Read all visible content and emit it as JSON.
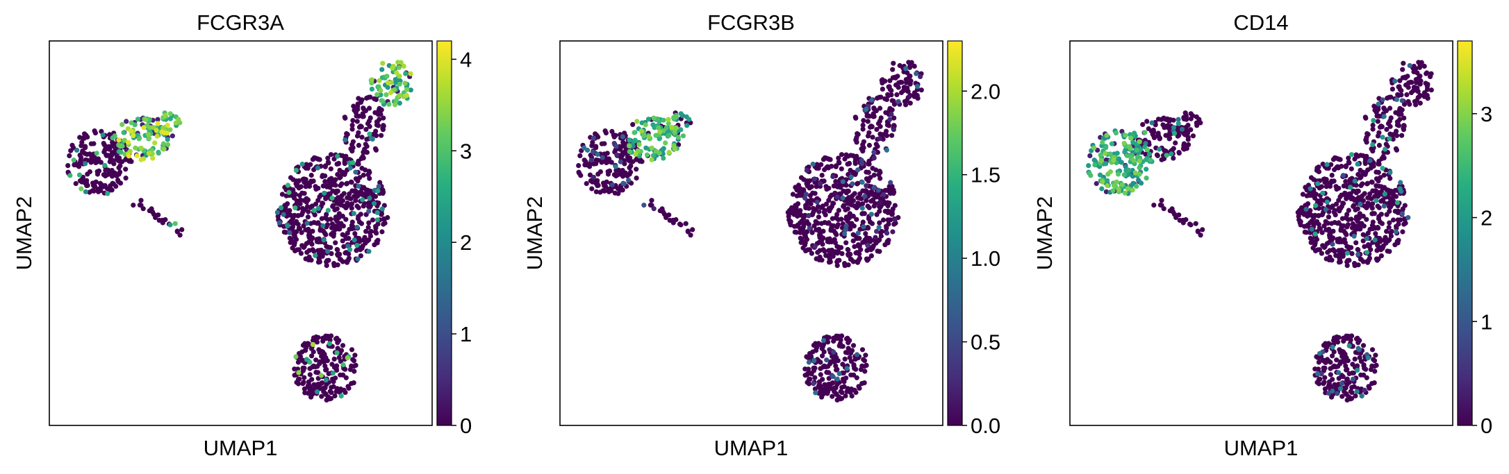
{
  "chart_data": [
    {
      "type": "scatter",
      "title": "FCGR3A",
      "xlabel": "UMAP1",
      "ylabel": "UMAP2",
      "colormap": "viridis",
      "colorbar": {
        "ticks": [
          0,
          1,
          2,
          3,
          4
        ],
        "range": [
          0,
          4.2
        ]
      },
      "clusters": [
        {
          "name": "upper-left",
          "level": 0.4,
          "hotspot": {
            "region": "right-top",
            "level": 3.7
          }
        },
        {
          "name": "right-large",
          "level": 0.3,
          "hotspot": {
            "region": "top-tip",
            "level": 3.5
          }
        },
        {
          "name": "bottom-small",
          "level": 0.5
        }
      ]
    },
    {
      "type": "scatter",
      "title": "FCGR3B",
      "xlabel": "UMAP1",
      "ylabel": "UMAP2",
      "colormap": "viridis",
      "colorbar": {
        "ticks": [
          0.0,
          0.5,
          1.0,
          1.5,
          2.0
        ],
        "range": [
          0,
          2.3
        ]
      },
      "clusters": [
        {
          "name": "upper-left",
          "level": 0.0,
          "hotspot": {
            "region": "right-top",
            "level": 1.8
          }
        },
        {
          "name": "right-large",
          "level": 0.0
        },
        {
          "name": "bottom-small",
          "level": 0.0
        }
      ]
    },
    {
      "type": "scatter",
      "title": "CD14",
      "xlabel": "UMAP1",
      "ylabel": "UMAP2",
      "colormap": "viridis",
      "colorbar": {
        "ticks": [
          0,
          1,
          2,
          3
        ],
        "range": [
          0,
          3.7
        ]
      },
      "clusters": [
        {
          "name": "upper-left",
          "level": 0.3,
          "hotspot": {
            "region": "left-lobe",
            "level": 2.8
          }
        },
        {
          "name": "right-large",
          "level": 0.2
        },
        {
          "name": "bottom-small",
          "level": 0.1
        }
      ]
    }
  ]
}
